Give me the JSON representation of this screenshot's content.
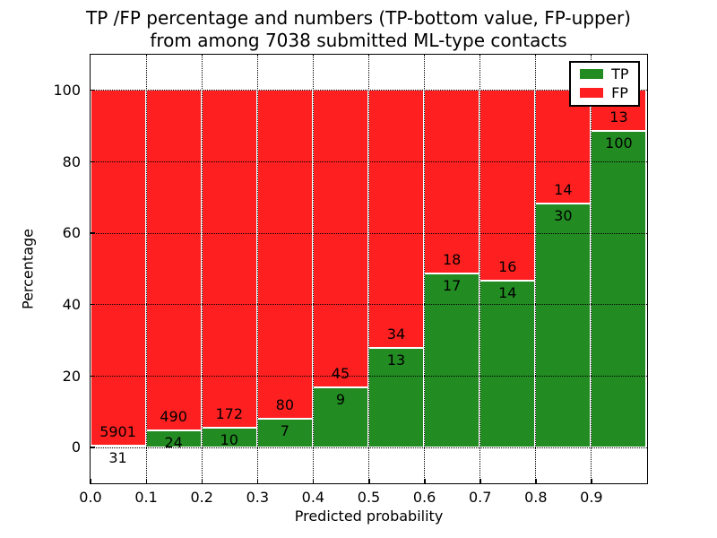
{
  "figure": {
    "title_line1": "TP /FP percentage and numbers (TP-bottom value, FP-upper)",
    "title_line2": "from among 7038 submitted ML-type contacts",
    "xlabel": "Predicted probability",
    "ylabel": "Percentage",
    "background": "#ffffff"
  },
  "chart_data": {
    "type": "bar",
    "stacked": true,
    "normalized_to_percent": true,
    "title": "TP /FP percentage and numbers (TP-bottom value, FP-upper) from among 7038 submitted ML-type contacts",
    "xlabel": "Predicted probability",
    "ylabel": "Percentage",
    "x_bins": [
      0.0,
      0.1,
      0.2,
      0.3,
      0.4,
      0.5,
      0.6,
      0.7,
      0.8,
      0.9
    ],
    "bin_width": 0.1,
    "xlim": [
      0.0,
      1.0
    ],
    "ylim": [
      -10,
      110
    ],
    "y_ticks": [
      0,
      20,
      40,
      60,
      80,
      100
    ],
    "x_tick_labels": [
      "0.0",
      "0.1",
      "0.2",
      "0.3",
      "0.4",
      "0.5",
      "0.6",
      "0.7",
      "0.8",
      "0.9"
    ],
    "grid": "dotted",
    "series": [
      {
        "name": "TP",
        "color": "#228b22",
        "counts": [
          31,
          24,
          10,
          7,
          9,
          13,
          17,
          14,
          30,
          100
        ],
        "percent_of_bin": [
          0.52,
          4.67,
          5.49,
          8.05,
          16.67,
          27.66,
          48.57,
          46.67,
          68.18,
          88.5
        ]
      },
      {
        "name": "FP",
        "color": "#fe2020",
        "counts": [
          5901,
          490,
          172,
          80,
          45,
          34,
          18,
          16,
          14,
          13
        ],
        "percent_of_bin": [
          99.48,
          95.33,
          94.51,
          91.95,
          83.33,
          72.34,
          51.43,
          53.33,
          31.82,
          11.5
        ]
      }
    ],
    "legend": {
      "position": "upper-right",
      "entries": [
        {
          "label": "TP",
          "color": "#228b22"
        },
        {
          "label": "FP",
          "color": "#fe2020"
        }
      ]
    }
  }
}
